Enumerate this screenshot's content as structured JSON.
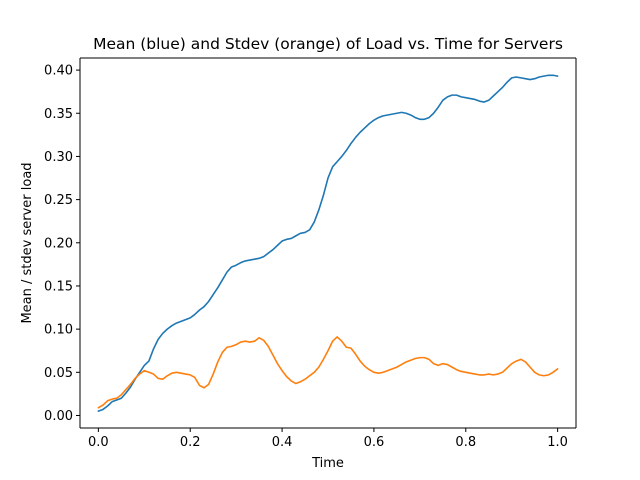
{
  "chart_data": {
    "type": "line",
    "title": "Mean (blue) and Stdev (orange) of Load vs. Time for Servers",
    "xlabel": "Time",
    "ylabel": "Mean / stdev server load",
    "xlim": [
      -0.04,
      1.04
    ],
    "ylim": [
      -0.0145,
      0.414
    ],
    "xticks": [
      0.0,
      0.2,
      0.4,
      0.6,
      0.8,
      1.0
    ],
    "xtick_labels": [
      "0.0",
      "0.2",
      "0.4",
      "0.6",
      "0.8",
      "1.0"
    ],
    "yticks": [
      0.0,
      0.05,
      0.1,
      0.15,
      0.2,
      0.25,
      0.3,
      0.35,
      0.4
    ],
    "ytick_labels": [
      "0.00",
      "0.05",
      "0.10",
      "0.15",
      "0.20",
      "0.25",
      "0.30",
      "0.35",
      "0.40"
    ],
    "grid": false,
    "legend": "none",
    "series": [
      {
        "color": "#1f77b4",
        "x": [
          0.0,
          0.01,
          0.02,
          0.03,
          0.04,
          0.05,
          0.06,
          0.07,
          0.08,
          0.09,
          0.1,
          0.11,
          0.12,
          0.13,
          0.14,
          0.15,
          0.16,
          0.17,
          0.18,
          0.19,
          0.2,
          0.21,
          0.22,
          0.23,
          0.24,
          0.25,
          0.26,
          0.27,
          0.28,
          0.29,
          0.3,
          0.31,
          0.32,
          0.33,
          0.34,
          0.35,
          0.36,
          0.37,
          0.38,
          0.39,
          0.4,
          0.41,
          0.42,
          0.43,
          0.44,
          0.45,
          0.46,
          0.47,
          0.48,
          0.49,
          0.5,
          0.51,
          0.52,
          0.53,
          0.54,
          0.55,
          0.56,
          0.57,
          0.58,
          0.59,
          0.6,
          0.61,
          0.62,
          0.63,
          0.64,
          0.65,
          0.66,
          0.67,
          0.68,
          0.69,
          0.7,
          0.71,
          0.72,
          0.73,
          0.74,
          0.75,
          0.76,
          0.77,
          0.78,
          0.79,
          0.8,
          0.81,
          0.82,
          0.83,
          0.84,
          0.85,
          0.86,
          0.87,
          0.88,
          0.89,
          0.9,
          0.91,
          0.92,
          0.93,
          0.94,
          0.95,
          0.96,
          0.97,
          0.98,
          0.99,
          1.0
        ],
        "values": [
          0.005,
          0.007,
          0.011,
          0.016,
          0.018,
          0.02,
          0.026,
          0.033,
          0.042,
          0.05,
          0.058,
          0.063,
          0.077,
          0.088,
          0.095,
          0.1,
          0.104,
          0.107,
          0.109,
          0.111,
          0.113,
          0.117,
          0.122,
          0.126,
          0.132,
          0.14,
          0.148,
          0.157,
          0.166,
          0.172,
          0.174,
          0.177,
          0.179,
          0.18,
          0.181,
          0.182,
          0.184,
          0.188,
          0.192,
          0.197,
          0.202,
          0.204,
          0.205,
          0.208,
          0.211,
          0.212,
          0.215,
          0.224,
          0.238,
          0.255,
          0.275,
          0.288,
          0.294,
          0.3,
          0.307,
          0.315,
          0.322,
          0.328,
          0.333,
          0.338,
          0.342,
          0.345,
          0.347,
          0.348,
          0.349,
          0.35,
          0.351,
          0.35,
          0.348,
          0.345,
          0.343,
          0.343,
          0.345,
          0.35,
          0.357,
          0.365,
          0.369,
          0.371,
          0.371,
          0.369,
          0.368,
          0.367,
          0.366,
          0.364,
          0.363,
          0.365,
          0.37,
          0.375,
          0.38,
          0.386,
          0.391,
          0.392,
          0.391,
          0.39,
          0.389,
          0.39,
          0.392,
          0.393,
          0.394,
          0.394,
          0.393
        ]
      },
      {
        "color": "#ff7f0e",
        "x": [
          0.0,
          0.01,
          0.02,
          0.03,
          0.04,
          0.05,
          0.06,
          0.07,
          0.08,
          0.09,
          0.1,
          0.11,
          0.12,
          0.13,
          0.14,
          0.15,
          0.16,
          0.17,
          0.18,
          0.19,
          0.2,
          0.21,
          0.22,
          0.23,
          0.24,
          0.25,
          0.26,
          0.27,
          0.28,
          0.29,
          0.3,
          0.31,
          0.32,
          0.33,
          0.34,
          0.35,
          0.36,
          0.37,
          0.38,
          0.39,
          0.4,
          0.41,
          0.42,
          0.43,
          0.44,
          0.45,
          0.46,
          0.47,
          0.48,
          0.49,
          0.5,
          0.51,
          0.52,
          0.53,
          0.54,
          0.55,
          0.56,
          0.57,
          0.58,
          0.59,
          0.6,
          0.61,
          0.62,
          0.63,
          0.64,
          0.65,
          0.66,
          0.67,
          0.68,
          0.69,
          0.7,
          0.71,
          0.72,
          0.73,
          0.74,
          0.75,
          0.76,
          0.77,
          0.78,
          0.79,
          0.8,
          0.81,
          0.82,
          0.83,
          0.84,
          0.85,
          0.86,
          0.87,
          0.88,
          0.89,
          0.9,
          0.91,
          0.92,
          0.93,
          0.94,
          0.95,
          0.96,
          0.97,
          0.98,
          0.99,
          1.0
        ],
        "values": [
          0.009,
          0.012,
          0.017,
          0.019,
          0.02,
          0.024,
          0.03,
          0.036,
          0.043,
          0.048,
          0.052,
          0.05,
          0.048,
          0.043,
          0.042,
          0.046,
          0.049,
          0.05,
          0.049,
          0.048,
          0.047,
          0.044,
          0.035,
          0.032,
          0.036,
          0.048,
          0.062,
          0.073,
          0.079,
          0.08,
          0.082,
          0.085,
          0.086,
          0.085,
          0.086,
          0.09,
          0.087,
          0.08,
          0.07,
          0.06,
          0.052,
          0.045,
          0.04,
          0.037,
          0.039,
          0.042,
          0.046,
          0.05,
          0.056,
          0.065,
          0.075,
          0.086,
          0.091,
          0.086,
          0.079,
          0.078,
          0.071,
          0.063,
          0.057,
          0.053,
          0.05,
          0.049,
          0.05,
          0.052,
          0.054,
          0.056,
          0.059,
          0.062,
          0.064,
          0.066,
          0.067,
          0.067,
          0.065,
          0.06,
          0.058,
          0.06,
          0.059,
          0.056,
          0.053,
          0.051,
          0.05,
          0.049,
          0.048,
          0.047,
          0.047,
          0.048,
          0.047,
          0.048,
          0.05,
          0.055,
          0.06,
          0.063,
          0.065,
          0.062,
          0.056,
          0.05,
          0.047,
          0.046,
          0.047,
          0.05,
          0.054
        ]
      }
    ]
  }
}
